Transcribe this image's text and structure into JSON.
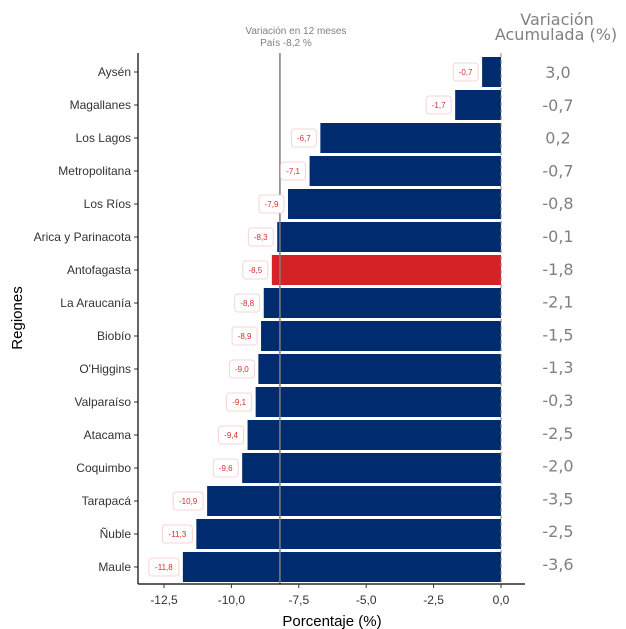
{
  "chart_data": {
    "type": "bar",
    "orientation": "horizontal",
    "xlabel": "Porcentaje (%)",
    "ylabel": "Regiones",
    "xlim": [
      -13.5,
      0.9
    ],
    "x_ticks": [
      {
        "value": -12.5,
        "label": "-12,5"
      },
      {
        "value": -10.0,
        "label": "-10,0"
      },
      {
        "value": -7.5,
        "label": "-7,5"
      },
      {
        "value": -5.0,
        "label": "-5,0"
      },
      {
        "value": -2.5,
        "label": "-2,5"
      },
      {
        "value": 0.0,
        "label": "0,0"
      }
    ],
    "grid": false,
    "colors": {
      "default": "#002b6e",
      "highlight": "#d52226",
      "label_text": "#d32f2f",
      "reference": "#808080"
    },
    "reference_line": {
      "value": -8.2,
      "label_line1": "Variación en 12 meses",
      "label_line2": "País -8,2 %"
    },
    "accumulated_title_line1": "Variación",
    "accumulated_title_line2": "Acumulada (%)",
    "categories": [
      {
        "name": "Aysén",
        "value": -0.7,
        "label": "-0,7",
        "accumulated": "3,0",
        "highlight": false
      },
      {
        "name": "Magallanes",
        "value": -1.7,
        "label": "-1,7",
        "accumulated": "-0,7",
        "highlight": false
      },
      {
        "name": "Los Lagos",
        "value": -6.7,
        "label": "-6,7",
        "accumulated": "0,2",
        "highlight": false
      },
      {
        "name": "Metropolitana",
        "value": -7.1,
        "label": "-7,1",
        "accumulated": "-0,7",
        "highlight": false
      },
      {
        "name": "Los Ríos",
        "value": -7.9,
        "label": "-7,9",
        "accumulated": "-0,8",
        "highlight": false
      },
      {
        "name": "Arica y Parinacota",
        "value": -8.3,
        "label": "-8,3",
        "accumulated": "-0,1",
        "highlight": false
      },
      {
        "name": "Antofagasta",
        "value": -8.5,
        "label": "-8,5",
        "accumulated": "-1,8",
        "highlight": true
      },
      {
        "name": "La Araucanía",
        "value": -8.8,
        "label": "-8,8",
        "accumulated": "-2,1",
        "highlight": false
      },
      {
        "name": "Biobío",
        "value": -8.9,
        "label": "-8,9",
        "accumulated": "-1,5",
        "highlight": false
      },
      {
        "name": "O'Higgins",
        "value": -9.0,
        "label": "-9,0",
        "accumulated": "-1,3",
        "highlight": false
      },
      {
        "name": "Valparaíso",
        "value": -9.1,
        "label": "-9,1",
        "accumulated": "-0,3",
        "highlight": false
      },
      {
        "name": "Atacama",
        "value": -9.4,
        "label": "-9,4",
        "accumulated": "-2,5",
        "highlight": false
      },
      {
        "name": "Coquimbo",
        "value": -9.6,
        "label": "-9,6",
        "accumulated": "-2,0",
        "highlight": false
      },
      {
        "name": "Tarapacá",
        "value": -10.9,
        "label": "-10,9",
        "accumulated": "-3,5",
        "highlight": false
      },
      {
        "name": "Ñuble",
        "value": -11.3,
        "label": "-11,3",
        "accumulated": "-2,5",
        "highlight": false
      },
      {
        "name": "Maule",
        "value": -11.8,
        "label": "-11,8",
        "accumulated": "-3,6",
        "highlight": false
      }
    ]
  }
}
